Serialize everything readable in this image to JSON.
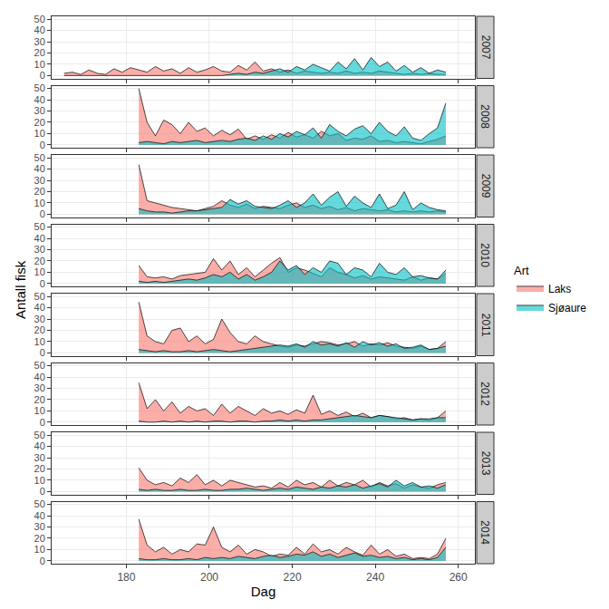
{
  "chart_data": {
    "type": "area",
    "x_label": "Dag",
    "y_label": "Antall fisk",
    "legend_title": "Art",
    "legend": "right",
    "grid": true,
    "xlim": [
      162,
      264
    ],
    "xticks": [
      180,
      200,
      220,
      240,
      260
    ],
    "ylim": [
      -2.5,
      52.5
    ],
    "yticks": [
      0,
      10,
      20,
      30,
      40,
      50
    ],
    "facets": [
      {
        "title": "2007",
        "x": [
          165,
          167,
          169,
          171,
          173,
          175,
          177,
          179,
          181,
          183,
          185,
          187,
          189,
          191,
          193,
          195,
          197,
          199,
          201,
          203,
          205,
          207,
          209,
          211,
          213,
          215,
          217,
          219,
          221,
          223,
          225,
          227,
          229,
          231,
          233,
          235,
          237,
          239,
          241,
          243,
          245,
          247,
          249,
          251,
          253,
          255,
          257
        ],
        "series": [
          {
            "name": "Laks",
            "color": "#F8766D",
            "values": [
              2,
              3,
              1,
              5,
              2,
              1,
              6,
              3,
              7,
              5,
              3,
              8,
              4,
              6,
              2,
              7,
              3,
              5,
              8,
              4,
              3,
              9,
              5,
              12,
              4,
              6,
              3,
              5,
              2,
              4,
              3,
              2,
              3,
              2,
              4,
              2,
              3,
              2,
              4,
              3,
              2,
              1,
              2,
              1,
              2,
              1,
              1
            ]
          },
          {
            "name": "Sjøaure",
            "color": "#00BFC4",
            "values": [
              0,
              0,
              0,
              0,
              0,
              0,
              0,
              0,
              0,
              0,
              0,
              0,
              0,
              0,
              0,
              0,
              0,
              0,
              0,
              0,
              1,
              2,
              1,
              3,
              2,
              4,
              6,
              3,
              8,
              5,
              10,
              7,
              4,
              12,
              6,
              15,
              5,
              16,
              8,
              12,
              4,
              9,
              3,
              7,
              2,
              5,
              3
            ]
          }
        ]
      },
      {
        "title": "2008",
        "x": [
          183,
          185,
          187,
          189,
          191,
          193,
          195,
          197,
          199,
          201,
          203,
          205,
          207,
          209,
          211,
          213,
          215,
          217,
          219,
          221,
          223,
          225,
          227,
          229,
          231,
          233,
          235,
          237,
          239,
          241,
          243,
          245,
          247,
          249,
          251,
          253,
          255,
          257
        ],
        "series": [
          {
            "name": "Laks",
            "color": "#F8766D",
            "values": [
              50,
              20,
              8,
              22,
              18,
              10,
              20,
              12,
              15,
              8,
              13,
              9,
              14,
              5,
              8,
              5,
              9,
              6,
              11,
              7,
              9,
              6,
              12,
              8,
              10,
              4,
              6,
              5,
              8,
              3,
              4,
              2,
              3,
              2,
              1,
              3,
              5,
              8
            ]
          },
          {
            "name": "Sjøaure",
            "color": "#00BFC4",
            "values": [
              2,
              3,
              2,
              1,
              3,
              2,
              3,
              4,
              2,
              3,
              4,
              3,
              5,
              6,
              4,
              8,
              5,
              10,
              7,
              12,
              9,
              15,
              6,
              18,
              12,
              8,
              14,
              17,
              10,
              20,
              12,
              8,
              16,
              6,
              4,
              10,
              15,
              37
            ]
          }
        ]
      },
      {
        "title": "2009",
        "x": [
          183,
          185,
          187,
          189,
          191,
          193,
          195,
          197,
          199,
          201,
          203,
          205,
          207,
          209,
          211,
          213,
          215,
          217,
          219,
          221,
          223,
          225,
          227,
          229,
          231,
          233,
          235,
          237,
          239,
          241,
          243,
          245,
          247,
          249,
          251,
          253,
          255,
          257
        ],
        "series": [
          {
            "name": "Laks",
            "color": "#F8766D",
            "values": [
              44,
              12,
              10,
              8,
              6,
              5,
              4,
              3,
              5,
              7,
              12,
              8,
              6,
              9,
              5,
              7,
              6,
              5,
              8,
              10,
              6,
              8,
              5,
              7,
              4,
              6,
              3,
              5,
              4,
              3,
              4,
              2,
              3,
              2,
              3,
              2,
              3,
              2
            ]
          },
          {
            "name": "Sjøaure",
            "color": "#00BFC4",
            "values": [
              5,
              3,
              2,
              2,
              1,
              2,
              3,
              3,
              4,
              5,
              6,
              13,
              9,
              12,
              7,
              6,
              5,
              8,
              12,
              6,
              10,
              18,
              8,
              15,
              20,
              7,
              16,
              10,
              6,
              18,
              5,
              8,
              20,
              4,
              10,
              6,
              4,
              3
            ]
          }
        ]
      },
      {
        "title": "2010",
        "x": [
          183,
          185,
          187,
          189,
          191,
          193,
          195,
          197,
          199,
          201,
          203,
          205,
          207,
          209,
          211,
          213,
          215,
          217,
          219,
          221,
          223,
          225,
          227,
          229,
          231,
          233,
          235,
          237,
          239,
          241,
          243,
          245,
          247,
          249,
          251,
          253,
          255,
          257
        ],
        "series": [
          {
            "name": "Laks",
            "color": "#F8766D",
            "values": [
              16,
              6,
              5,
              6,
              4,
              7,
              8,
              9,
              10,
              22,
              12,
              20,
              8,
              14,
              6,
              12,
              18,
              23,
              10,
              14,
              12,
              9,
              6,
              14,
              10,
              8,
              5,
              7,
              4,
              6,
              5,
              4,
              3,
              6,
              3,
              5,
              4,
              9
            ]
          },
          {
            "name": "Sjøaure",
            "color": "#00BFC4",
            "values": [
              2,
              1,
              2,
              1,
              2,
              3,
              4,
              3,
              5,
              8,
              6,
              10,
              4,
              8,
              3,
              6,
              10,
              20,
              12,
              16,
              8,
              14,
              10,
              20,
              18,
              8,
              14,
              12,
              6,
              18,
              10,
              8,
              14,
              6,
              7,
              5,
              4,
              12
            ]
          }
        ]
      },
      {
        "title": "2011",
        "x": [
          183,
          185,
          187,
          189,
          191,
          193,
          195,
          197,
          199,
          201,
          203,
          205,
          207,
          209,
          211,
          213,
          215,
          217,
          219,
          221,
          223,
          225,
          227,
          229,
          231,
          233,
          235,
          237,
          239,
          241,
          243,
          245,
          247,
          249,
          251,
          253,
          255,
          257
        ],
        "series": [
          {
            "name": "Laks",
            "color": "#F8766D",
            "values": [
              45,
              15,
              10,
              8,
              20,
              22,
              10,
              15,
              8,
              12,
              30,
              18,
              10,
              8,
              15,
              10,
              8,
              6,
              5,
              7,
              6,
              8,
              10,
              9,
              7,
              8,
              10,
              6,
              8,
              7,
              9,
              6,
              5,
              4,
              6,
              3,
              4,
              10
            ]
          },
          {
            "name": "Sjøaure",
            "color": "#00BFC4",
            "values": [
              3,
              2,
              1,
              2,
              1,
              1,
              2,
              1,
              2,
              3,
              2,
              1,
              2,
              3,
              4,
              5,
              6,
              7,
              6,
              8,
              5,
              10,
              7,
              8,
              6,
              9,
              5,
              10,
              7,
              9,
              6,
              8,
              4,
              5,
              7,
              3,
              4,
              6
            ]
          }
        ]
      },
      {
        "title": "2012",
        "x": [
          183,
          185,
          187,
          189,
          191,
          193,
          195,
          197,
          199,
          201,
          203,
          205,
          207,
          209,
          211,
          213,
          215,
          217,
          219,
          221,
          223,
          225,
          227,
          229,
          231,
          233,
          235,
          237,
          239,
          241,
          243,
          245,
          247,
          249,
          251,
          253,
          255,
          257
        ],
        "series": [
          {
            "name": "Laks",
            "color": "#F8766D",
            "values": [
              35,
              12,
              20,
              10,
              18,
              8,
              14,
              10,
              12,
              6,
              16,
              8,
              14,
              10,
              6,
              12,
              8,
              10,
              7,
              11,
              8,
              24,
              7,
              10,
              6,
              9,
              5,
              8,
              4,
              6,
              5,
              3,
              4,
              2,
              3,
              2,
              4,
              10
            ]
          },
          {
            "name": "Sjøaure",
            "color": "#00BFC4",
            "values": [
              1,
              0,
              0,
              1,
              0,
              1,
              0,
              1,
              0,
              1,
              1,
              0,
              1,
              1,
              0,
              1,
              1,
              2,
              1,
              2,
              1,
              2,
              2,
              3,
              4,
              5,
              6,
              5,
              4,
              6,
              5,
              4,
              3,
              2,
              3,
              3,
              4,
              4
            ]
          }
        ]
      },
      {
        "title": "2013",
        "x": [
          183,
          185,
          187,
          189,
          191,
          193,
          195,
          197,
          199,
          201,
          203,
          205,
          207,
          209,
          211,
          213,
          215,
          217,
          219,
          221,
          223,
          225,
          227,
          229,
          231,
          233,
          235,
          237,
          239,
          241,
          243,
          245,
          247,
          249,
          251,
          253,
          255,
          257
        ],
        "series": [
          {
            "name": "Laks",
            "color": "#F8766D",
            "values": [
              21,
              10,
              6,
              8,
              5,
              12,
              8,
              15,
              6,
              10,
              5,
              10,
              8,
              6,
              4,
              5,
              3,
              8,
              4,
              10,
              6,
              8,
              4,
              10,
              5,
              8,
              6,
              10,
              4,
              8,
              5,
              7,
              3,
              6,
              4,
              3,
              6,
              8
            ]
          },
          {
            "name": "Sjøaure",
            "color": "#00BFC4",
            "values": [
              2,
              1,
              2,
              1,
              1,
              2,
              1,
              1,
              2,
              1,
              1,
              2,
              2,
              3,
              2,
              1,
              2,
              3,
              2,
              4,
              3,
              2,
              4,
              3,
              5,
              4,
              6,
              3,
              5,
              7,
              4,
              10,
              5,
              8,
              4,
              5,
              3,
              6
            ]
          }
        ]
      },
      {
        "title": "2014",
        "x": [
          183,
          185,
          187,
          189,
          191,
          193,
          195,
          197,
          199,
          201,
          203,
          205,
          207,
          209,
          211,
          213,
          215,
          217,
          219,
          221,
          223,
          225,
          227,
          229,
          231,
          233,
          235,
          237,
          239,
          241,
          243,
          245,
          247,
          249,
          251,
          253,
          255,
          257
        ],
        "series": [
          {
            "name": "Laks",
            "color": "#F8766D",
            "values": [
              37,
              14,
              8,
              12,
              6,
              10,
              8,
              15,
              14,
              30,
              12,
              8,
              14,
              6,
              10,
              8,
              4,
              6,
              5,
              12,
              6,
              15,
              8,
              10,
              6,
              12,
              8,
              5,
              14,
              6,
              10,
              4,
              6,
              2,
              3,
              2,
              6,
              20
            ]
          },
          {
            "name": "Sjøaure",
            "color": "#00BFC4",
            "values": [
              2,
              1,
              1,
              2,
              1,
              1,
              2,
              1,
              3,
              2,
              3,
              2,
              4,
              3,
              2,
              4,
              5,
              3,
              4,
              6,
              5,
              8,
              4,
              6,
              3,
              5,
              7,
              4,
              5,
              3,
              4,
              2,
              3,
              1,
              2,
              1,
              3,
              12
            ]
          }
        ]
      }
    ]
  }
}
